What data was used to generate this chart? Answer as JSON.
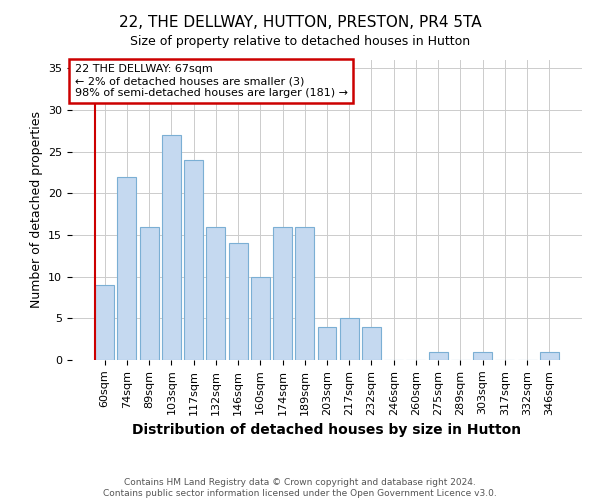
{
  "title": "22, THE DELLWAY, HUTTON, PRESTON, PR4 5TA",
  "subtitle": "Size of property relative to detached houses in Hutton",
  "xlabel": "Distribution of detached houses by size in Hutton",
  "ylabel": "Number of detached properties",
  "categories": [
    "60sqm",
    "74sqm",
    "89sqm",
    "103sqm",
    "117sqm",
    "132sqm",
    "146sqm",
    "160sqm",
    "174sqm",
    "189sqm",
    "203sqm",
    "217sqm",
    "232sqm",
    "246sqm",
    "260sqm",
    "275sqm",
    "289sqm",
    "303sqm",
    "317sqm",
    "332sqm",
    "346sqm"
  ],
  "values": [
    9,
    22,
    16,
    27,
    24,
    16,
    14,
    10,
    16,
    16,
    4,
    5,
    4,
    0,
    0,
    1,
    0,
    1,
    0,
    0,
    1
  ],
  "bar_color": "#c5d9f0",
  "bar_edge_color": "#7bafd4",
  "highlight_color": "#cc0000",
  "ylim": [
    0,
    36
  ],
  "yticks": [
    0,
    5,
    10,
    15,
    20,
    25,
    30,
    35
  ],
  "annotation_line1": "22 THE DELLWAY: 67sqm",
  "annotation_line2": "← 2% of detached houses are smaller (3)",
  "annotation_line3": "98% of semi-detached houses are larger (181) →",
  "annotation_box_color": "#ffffff",
  "annotation_box_edge": "#cc0000",
  "footnote": "Contains HM Land Registry data © Crown copyright and database right 2024.\nContains public sector information licensed under the Open Government Licence v3.0.",
  "background_color": "#ffffff",
  "grid_color": "#cccccc",
  "title_fontsize": 11,
  "subtitle_fontsize": 9,
  "xlabel_fontsize": 10,
  "ylabel_fontsize": 9,
  "tick_fontsize": 8,
  "annot_fontsize": 8,
  "footnote_fontsize": 6.5
}
